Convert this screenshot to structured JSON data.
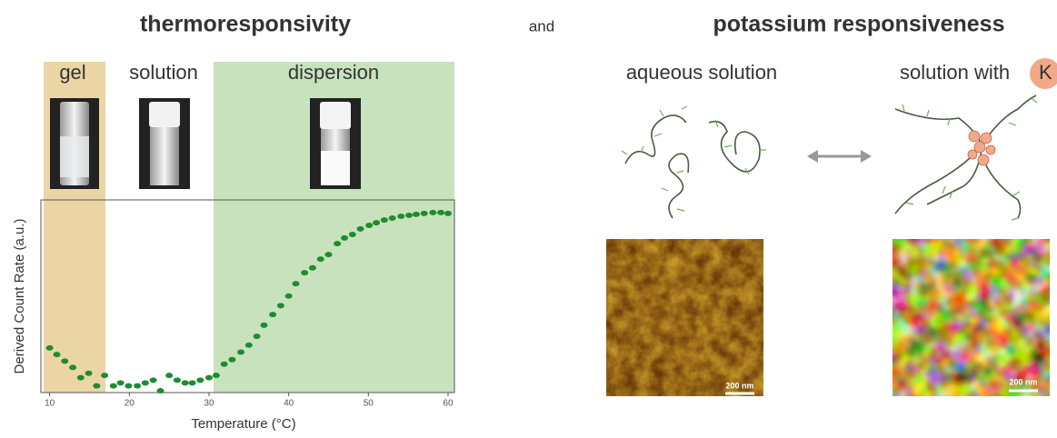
{
  "header": {
    "left_title": "thermoresponsivity",
    "connector": "and",
    "right_title": "potassium responsiveness"
  },
  "phases": [
    "gel",
    "solution",
    "dispersion"
  ],
  "states": {
    "aqueous": "aqueous solution",
    "potassium": "solution with",
    "ion": "K"
  },
  "scale_bars": [
    "200 nm",
    "200 nm"
  ],
  "chart_data": {
    "type": "scatter",
    "xlabel": "Temperature (°C)",
    "ylabel": "Derived Count Rate (a.u.)",
    "x": [
      10.0,
      10.9,
      11.9,
      12.9,
      13.9,
      14.9,
      15.9,
      16.9,
      18.0,
      18.9,
      19.9,
      21.0,
      22.0,
      23.0,
      23.9,
      25.0,
      26.0,
      27.0,
      27.9,
      28.9,
      30.0,
      30.9,
      31.9,
      32.9,
      34.0,
      35.0,
      36.0,
      36.9,
      38.0,
      39.0,
      40.0,
      40.9,
      42.0,
      43.0,
      44.0,
      45.0,
      46.1,
      47.0,
      48.0,
      49.0,
      50.1,
      51.0,
      52.0,
      53.0,
      54.1,
      55.1,
      56.0,
      57.0,
      58.1,
      59.1,
      60.0
    ],
    "values": [
      3.4,
      2.8,
      2.3,
      1.9,
      1.4,
      1.6,
      1.1,
      1.5,
      1.1,
      1.2,
      1.1,
      1.1,
      1.2,
      1.3,
      0.95,
      1.5,
      1.3,
      1.2,
      1.2,
      1.3,
      1.4,
      1.5,
      2.1,
      2.4,
      3.0,
      3.7,
      4.8,
      6.7,
      9.2,
      12,
      16,
      23,
      32,
      37,
      48,
      55,
      76,
      90,
      100,
      118,
      131,
      142,
      154,
      163,
      172,
      177,
      182,
      187,
      192,
      192,
      187
    ],
    "color": "#1e8c2e",
    "xlim": [
      8.9,
      60.8
    ],
    "xticks": [
      10,
      20,
      30,
      40,
      50,
      60
    ],
    "ylim": [
      0.9,
      280
    ],
    "log_y": true
  }
}
